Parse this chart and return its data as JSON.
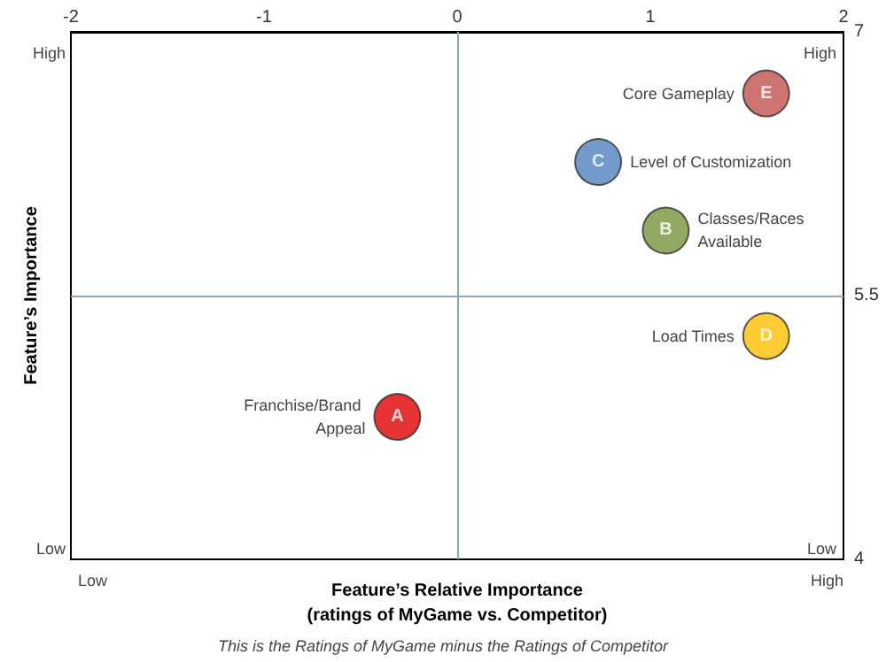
{
  "chart_data": {
    "type": "scatter",
    "xlabel": "Feature’s Relative Importance\n(ratings of MyGame vs. Competitor)",
    "ylabel": "Feature’s Importance",
    "annotations": [
      "High",
      "High",
      "Low",
      "Low",
      "Low",
      "High",
      "This is the Ratings of MyGame minus the Ratings of Competitor"
    ],
    "series": [
      {
        "name": "Franchise/Brand Appeal",
        "color": "#e00000",
        "x": [
          -0.31
        ],
        "values": [
          4.81
        ],
        "value_labels": [
          "A"
        ]
      },
      {
        "name": "Classes/Races Available",
        "color": "#77933c",
        "x": [
          1.08
        ],
        "values": [
          5.87
        ],
        "value_labels": [
          "B"
        ]
      },
      {
        "name": "Level of Customization",
        "color": "#4f81bd",
        "x": [
          0.73
        ],
        "values": [
          6.26
        ],
        "value_labels": [
          "C"
        ]
      },
      {
        "name": "Load Times",
        "color": "#ffc000",
        "x": [
          1.6
        ],
        "values": [
          5.27
        ],
        "value_labels": [
          "D"
        ]
      },
      {
        "name": "Core Gameplay",
        "color": "#c0504d",
        "x": [
          1.6
        ],
        "values": [
          6.65
        ],
        "value_labels": [
          "E"
        ]
      }
    ],
    "xlim": [
      -2,
      2
    ],
    "xticks": [
      -2,
      -1,
      0,
      1,
      2
    ],
    "ylim": [
      4,
      7
    ],
    "yticks": [
      4,
      5.5,
      7
    ],
    "ref_lines": [
      {
        "axis": "x",
        "value": 0,
        "color": "#8eaabd"
      },
      {
        "axis": "y",
        "value": 5.5,
        "color": "#8eaabd"
      }
    ],
    "marker": "circle",
    "grid": false
  }
}
